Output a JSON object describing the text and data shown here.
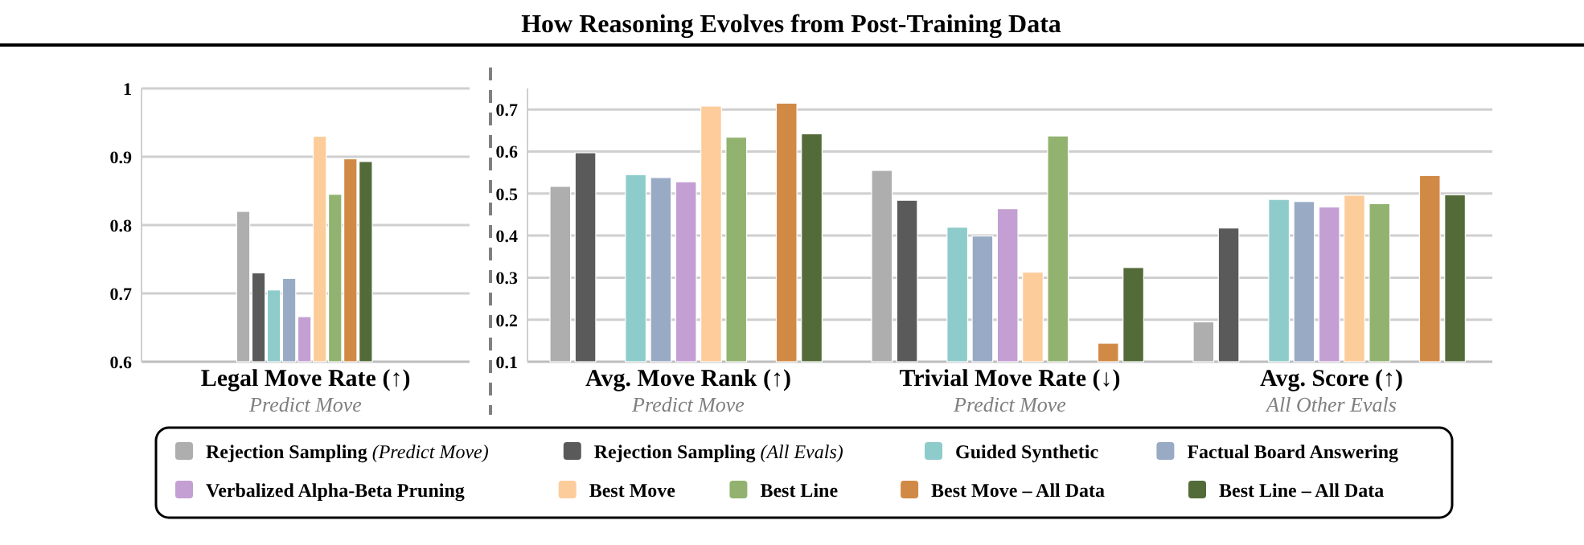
{
  "chart_data": [
    {
      "type": "bar",
      "categories": [
        "Legal Move Rate (↑)\nPredict Move"
      ],
      "ylim": [
        0.6,
        1
      ],
      "yticks": [
        0.6,
        0.7,
        0.8,
        0.9,
        1
      ],
      "grid": "y",
      "legend": "bottom",
      "series": [
        {
          "name": "Rejection Sampling (Predict Move)",
          "color": "#aeaeae",
          "values": [
            0.82
          ]
        },
        {
          "name": "Rejection Sampling (All Evals)",
          "color": "#5a5a5a",
          "values": [
            0.73
          ]
        },
        {
          "name": "Guided Synthetic",
          "color": "#8ecbcb",
          "values": [
            0.705
          ]
        },
        {
          "name": "Factual Board Answering",
          "color": "#98aac4",
          "values": [
            0.722
          ]
        },
        {
          "name": "Verbalized Alpha-Beta Pruning",
          "color": "#c49fd4",
          "values": [
            0.666
          ]
        },
        {
          "name": "Best Move",
          "color": "#fdcc9b",
          "values": [
            0.93
          ]
        },
        {
          "name": "Best Line",
          "color": "#92b26f",
          "values": [
            0.845
          ]
        },
        {
          "name": "Best Move – All Data",
          "color": "#d18a45",
          "values": [
            0.897
          ]
        },
        {
          "name": "Best Line – All Data",
          "color": "#526b38",
          "values": [
            0.893
          ]
        }
      ]
    },
    {
      "type": "bar",
      "title": "How Reasoning Evolves from Post-Training Data",
      "categories": [
        "Avg. Move Rank (↑)\nPredict Move",
        "Trivial Move Rate (↓)\nPredict Move",
        "Avg. Score (↑)\nAll Other Evals"
      ],
      "ylim": [
        0.1,
        0.75
      ],
      "yticks": [
        0.1,
        0.2,
        0.3,
        0.4,
        0.5,
        0.6,
        0.7
      ],
      "grid": "y",
      "series": [
        {
          "color": "#aeaeae",
          "values": [
            0.517,
            0.555,
            0.195
          ]
        },
        {
          "color": "#5a5a5a",
          "values": [
            0.597,
            0.484,
            0.418
          ]
        },
        {
          "color": "#8ecbcb",
          "values": [
            0.545,
            0.42,
            0.486
          ]
        },
        {
          "color": "#98aac4",
          "values": [
            0.538,
            0.399,
            0.481
          ]
        },
        {
          "color": "#c49fd4",
          "values": [
            0.528,
            0.464,
            0.468
          ]
        },
        {
          "color": "#fdcc9b",
          "values": [
            0.708,
            0.313,
            0.496
          ]
        },
        {
          "color": "#92b26f",
          "values": [
            0.634,
            0.637,
            0.476
          ]
        },
        {
          "color": "#d18a45",
          "values": [
            0.715,
            0.144,
            0.543
          ]
        },
        {
          "color": "#526b38",
          "values": [
            0.642,
            0.324,
            0.497
          ]
        }
      ]
    }
  ]
}
